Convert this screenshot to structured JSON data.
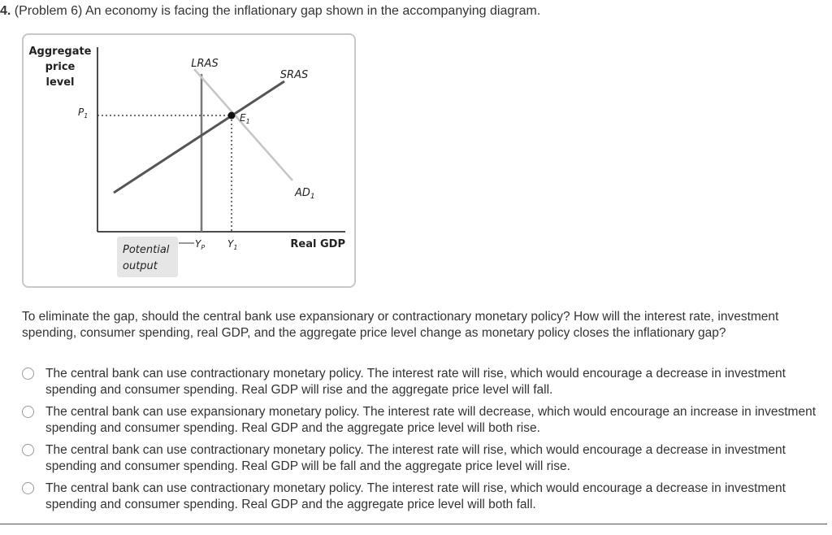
{
  "question": {
    "number": "4.",
    "intro": "(Problem 6) An economy is facing the inflationary gap shown in the accompanying diagram.",
    "prompt": "To eliminate the gap, should the central bank use expansionary or contractionary monetary policy? How will the interest rate, investment spending, consumer spending, real GDP, and the aggregate price level change as monetary policy closes the inflationary gap?"
  },
  "diagram": {
    "y_axis_label": [
      "Aggregate",
      "price",
      "level"
    ],
    "x_axis_label": "Real GDP",
    "lras_label": "LRAS",
    "sras_label": "SRAS",
    "ad_label": "AD",
    "ad_subscript": "1",
    "equilibrium_label": "E",
    "equilibrium_subscript": "1",
    "price_label": "P",
    "price_subscript": "1",
    "potential_output_label": [
      "Potential",
      "output"
    ],
    "yp_label": "Y",
    "yp_subscript": "P",
    "y1_label": "Y",
    "y1_subscript": "1"
  },
  "options": [
    {
      "text": "The central bank can use contractionary monetary policy. The interest rate will rise, which would encourage a decrease in investment spending and consumer spending. Real GDP will rise and the aggregate price level will fall."
    },
    {
      "text": "The central bank can use expansionary monetary policy. The interest rate will decrease, which would encourage an increase in investment spending and consumer spending. Real GDP and the aggregate price level will both rise."
    },
    {
      "text": "The central bank can use contractionary monetary policy. The interest rate will rise, which would encourage a decrease in investment spending and consumer spending. Real GDP will be fall and the aggregate price level will rise."
    },
    {
      "text": "The central bank can use contractionary monetary policy. The interest rate will rise, which would encourage a decrease in investment spending and consumer spending. Real GDP and the aggregate price level will both fall."
    }
  ]
}
